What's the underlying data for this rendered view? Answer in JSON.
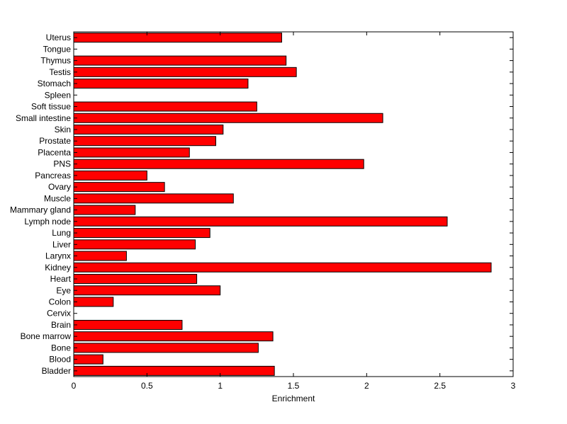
{
  "chart_data": {
    "type": "bar",
    "orientation": "horizontal",
    "categories": [
      "Uterus",
      "Tongue",
      "Thymus",
      "Testis",
      "Stomach",
      "Spleen",
      "Soft tissue",
      "Small intestine",
      "Skin",
      "Prostate",
      "Placenta",
      "PNS",
      "Pancreas",
      "Ovary",
      "Muscle",
      "Mammary gland",
      "Lymph node",
      "Lung",
      "Liver",
      "Larynx",
      "Kidney",
      "Heart",
      "Eye",
      "Colon",
      "Cervix",
      "Brain",
      "Bone marrow",
      "Bone",
      "Blood",
      "Bladder"
    ],
    "values": [
      1.42,
      0,
      1.45,
      1.52,
      1.19,
      0,
      1.25,
      2.11,
      1.02,
      0.97,
      0.79,
      1.98,
      0.5,
      0.62,
      1.09,
      0.42,
      2.55,
      0.93,
      0.83,
      0.36,
      2.85,
      0.84,
      1.0,
      0.27,
      0,
      0.74,
      1.36,
      1.26,
      0.2,
      1.37
    ],
    "title": "",
    "xlabel": "Enrichment",
    "ylabel": "",
    "xlim": [
      0,
      3
    ],
    "xticks": [
      "0",
      "0.5",
      "1",
      "1.5",
      "2",
      "2.5",
      "3"
    ],
    "grid": false,
    "bar_color": "#ff0000",
    "edge_color": "#000000"
  }
}
